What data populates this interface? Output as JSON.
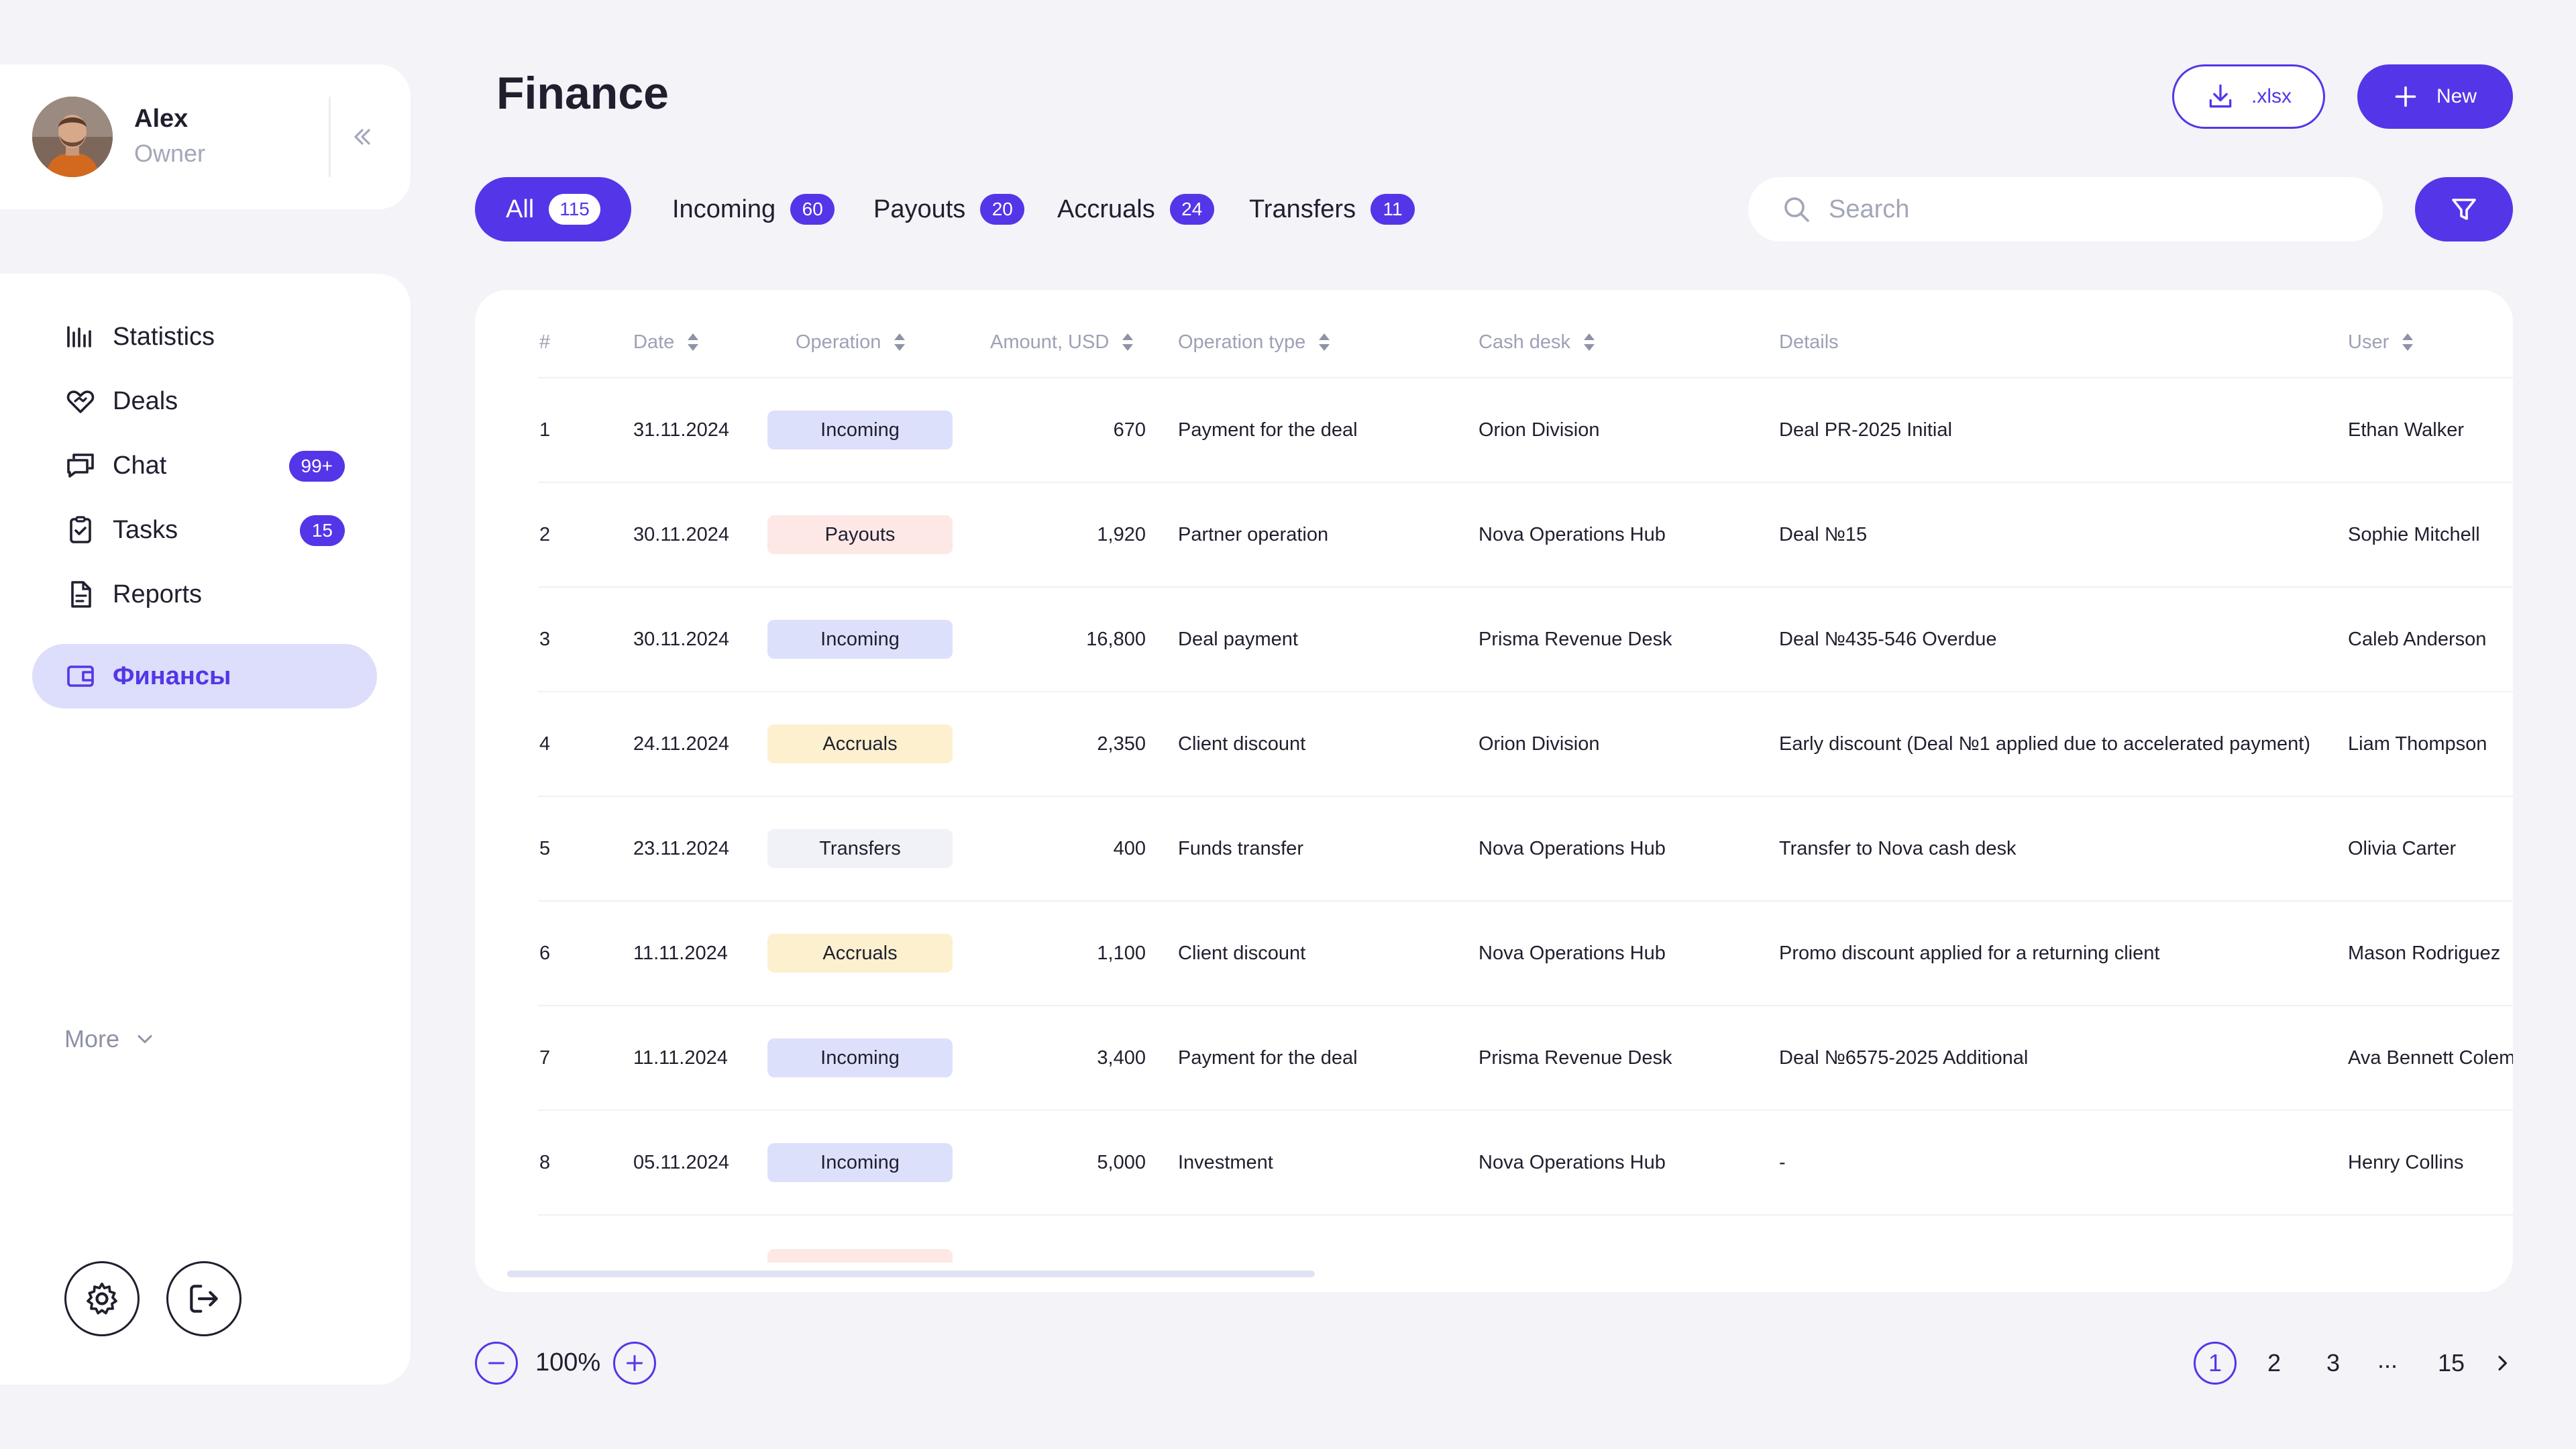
{
  "profile": {
    "name": "Alex",
    "role": "Owner"
  },
  "nav": {
    "items": [
      {
        "label": "Statistics",
        "icon": "bar-chart-icon"
      },
      {
        "label": "Deals",
        "icon": "handshake-icon"
      },
      {
        "label": "Chat",
        "icon": "chat-icon",
        "badge": "99+"
      },
      {
        "label": "Tasks",
        "icon": "clipboard-check-icon",
        "badge": "15"
      },
      {
        "label": "Reports",
        "icon": "document-icon"
      },
      {
        "label": "Финансы",
        "icon": "wallet-icon",
        "active": true
      }
    ],
    "more_label": "More"
  },
  "header": {
    "title": "Finance",
    "export_label": ".xlsx",
    "new_label": "New"
  },
  "tabs": [
    {
      "label": "All",
      "count": "115",
      "active": true
    },
    {
      "label": "Incoming",
      "count": "60"
    },
    {
      "label": "Payouts",
      "count": "20"
    },
    {
      "label": "Accruals",
      "count": "24"
    },
    {
      "label": "Transfers",
      "count": "11"
    }
  ],
  "search": {
    "placeholder": "Search",
    "value": ""
  },
  "table": {
    "columns": [
      "#",
      "Date",
      "Operation",
      "Amount, USD",
      "Operation type",
      "Cash desk",
      "Details",
      "User"
    ],
    "rows": [
      {
        "n": "1",
        "date": "31.11.2024",
        "operation": "Incoming",
        "amount": "670",
        "type": "Payment for the deal",
        "desk": "Orion Division",
        "details": "Deal PR-2025 Initial",
        "user": "Ethan Walker"
      },
      {
        "n": "2",
        "date": "30.11.2024",
        "operation": "Payouts",
        "amount": "1,920",
        "type": "Partner operation",
        "desk": "Nova Operations Hub",
        "details": "Deal №15",
        "user": "Sophie Mitchell"
      },
      {
        "n": "3",
        "date": "30.11.2024",
        "operation": "Incoming",
        "amount": "16,800",
        "type": "Deal payment",
        "desk": "Prisma Revenue Desk",
        "details": "Deal №435-546 Overdue",
        "user": "Caleb Anderson"
      },
      {
        "n": "4",
        "date": "24.11.2024",
        "operation": "Accruals",
        "amount": "2,350",
        "type": "Client discount",
        "desk": "Orion Division",
        "details": "Early discount (Deal №1 applied due to accelerated payment)",
        "user": "Liam Thompson"
      },
      {
        "n": "5",
        "date": "23.11.2024",
        "operation": "Transfers",
        "amount": "400",
        "type": "Funds transfer",
        "desk": "Nova Operations Hub",
        "details": "Transfer to Nova cash desk",
        "user": "Olivia Carter"
      },
      {
        "n": "6",
        "date": "11.11.2024",
        "operation": "Accruals",
        "amount": "1,100",
        "type": "Client discount",
        "desk": "Nova Operations Hub",
        "details": "Promo discount applied for a returning client",
        "user": "Mason Rodriguez"
      },
      {
        "n": "7",
        "date": "11.11.2024",
        "operation": "Incoming",
        "amount": "3,400",
        "type": "Payment for the deal",
        "desk": "Prisma Revenue Desk",
        "details": "Deal №6575-2025 Additional",
        "user": "Ava Bennett Coleman"
      },
      {
        "n": "8",
        "date": "05.11.2024",
        "operation": "Incoming",
        "amount": "5,000",
        "type": "Investment",
        "desk": "Nova Operations Hub",
        "details": "-",
        "user": "Henry Collins"
      }
    ]
  },
  "chip_colors": {
    "Incoming": "#dde0fb",
    "Payouts": "#fde8e6",
    "Accruals": "#fdf0cf",
    "Transfers": "#f1f2f7"
  },
  "zoom": {
    "value": "100%"
  },
  "pagination": {
    "pages": [
      "1",
      "2",
      "3"
    ],
    "dots": "...",
    "last": "15",
    "current": "1"
  },
  "colors": {
    "accent": "#5436e8",
    "background": "#f3f3f8"
  }
}
